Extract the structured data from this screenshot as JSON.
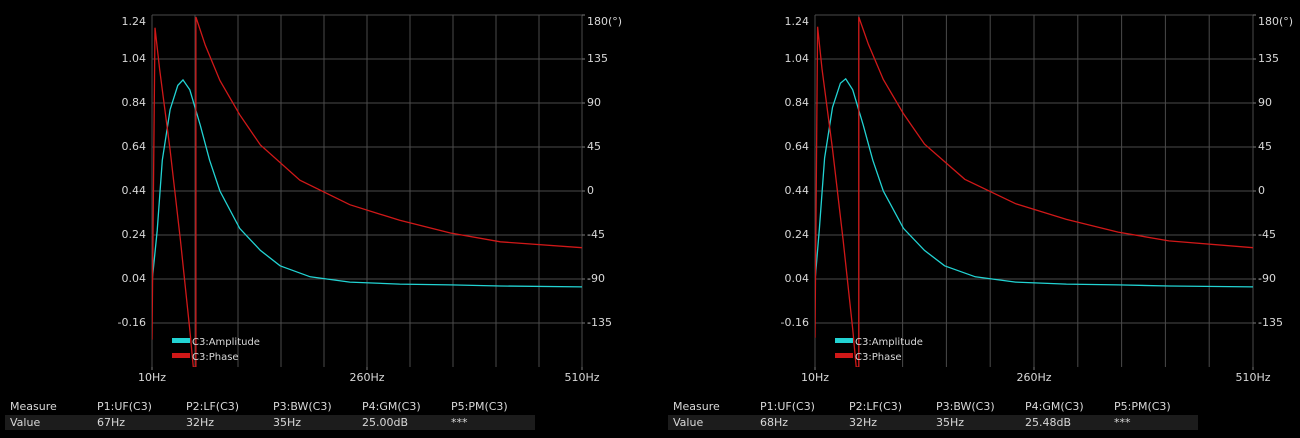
{
  "chart_data": [
    {
      "type": "line",
      "xlim": [
        10,
        510
      ],
      "xticks": [
        {
          "value": 10,
          "label": "10Hz"
        },
        {
          "value": 260,
          "label": "260Hz"
        },
        {
          "value": 510,
          "label": "510Hz"
        }
      ],
      "xgrid": [
        10,
        60,
        110,
        160,
        210,
        260,
        310,
        360,
        410,
        460,
        510
      ],
      "ylim": [
        -0.36,
        1.24
      ],
      "yticks": [
        -0.16,
        0.04,
        0.24,
        0.44,
        0.64,
        0.84,
        1.04,
        1.24
      ],
      "y2lim": [
        -180,
        180
      ],
      "y2ticks": [
        -135,
        -90,
        -45,
        0,
        45,
        90,
        135,
        {
          "value": 180,
          "label": "180(°)"
        }
      ],
      "grid": true,
      "legend": "lower left",
      "series": [
        {
          "name": "C3:Amplitude",
          "color": "#22d3d3",
          "x": [
            10,
            16,
            22,
            31,
            40,
            46,
            54,
            66,
            77,
            89,
            112,
            136,
            159,
            194,
            240,
            298,
            357,
            415,
            510
          ],
          "values": [
            0.026,
            0.26,
            0.58,
            0.81,
            0.92,
            0.945,
            0.9,
            0.74,
            0.58,
            0.44,
            0.27,
            0.17,
            0.1,
            0.05,
            0.026,
            0.017,
            0.013,
            0.008,
            0.004
          ]
        },
        {
          "name": "C3:Phase",
          "color": "#d01818",
          "axis": "y2",
          "x": [
            10,
            13.5,
            19,
            31,
            43,
            54,
            58,
            61,
            61,
            72,
            89,
            112,
            136,
            182,
            240,
            298,
            357,
            415,
            510
          ],
          "values": [
            -152,
            167,
            124,
            42,
            -50,
            -142,
            -180,
            -180,
            178,
            149,
            113,
            78,
            47,
            11,
            -14,
            -30,
            -43,
            -52,
            -58
          ]
        }
      ]
    },
    {
      "type": "line",
      "xlim": [
        10,
        510
      ],
      "xticks": [
        {
          "value": 10,
          "label": "10Hz"
        },
        {
          "value": 260,
          "label": "260Hz"
        },
        {
          "value": 510,
          "label": "510Hz"
        }
      ],
      "xgrid": [
        10,
        60,
        110,
        160,
        210,
        260,
        310,
        360,
        410,
        460,
        510
      ],
      "ylim": [
        -0.36,
        1.24
      ],
      "yticks": [
        -0.16,
        0.04,
        0.24,
        0.44,
        0.64,
        0.84,
        1.04,
        1.24
      ],
      "y2lim": [
        -180,
        180
      ],
      "y2ticks": [
        -135,
        -90,
        -45,
        0,
        45,
        90,
        135,
        {
          "value": 180,
          "label": "180(°)"
        }
      ],
      "grid": true,
      "legend": "lower left",
      "series": [
        {
          "name": "C3:Amplitude",
          "color": "#22d3d3",
          "x": [
            10,
            15,
            21,
            30,
            39,
            45,
            53,
            65,
            76,
            88,
            111,
            135,
            158,
            193,
            239,
            297,
            356,
            414,
            510
          ],
          "values": [
            0.03,
            0.27,
            0.59,
            0.82,
            0.93,
            0.95,
            0.9,
            0.74,
            0.58,
            0.44,
            0.27,
            0.17,
            0.1,
            0.05,
            0.026,
            0.017,
            0.013,
            0.008,
            0.004
          ]
        },
        {
          "name": "C3:Phase",
          "color": "#d01818",
          "axis": "y2",
          "x": [
            10,
            13,
            18,
            30,
            42,
            53,
            57,
            60,
            60,
            71,
            88,
            111,
            135,
            181,
            239,
            297,
            356,
            414,
            510
          ],
          "values": [
            -150,
            168,
            125,
            43,
            -49,
            -141,
            -180,
            -180,
            178,
            150,
            114,
            79,
            48,
            12,
            -13,
            -29,
            -42,
            -51,
            -58
          ]
        }
      ]
    }
  ],
  "measurements": [
    {
      "headers": [
        "Measure",
        "P1:UF(C3)",
        "P2:LF(C3)",
        "P3:BW(C3)",
        "P4:GM(C3)",
        "P5:PM(C3)"
      ],
      "values": [
        "Value",
        "67Hz",
        "32Hz",
        "35Hz",
        "25.00dB",
        "***"
      ]
    },
    {
      "headers": [
        "Measure",
        "P1:UF(C3)",
        "P2:LF(C3)",
        "P3:BW(C3)",
        "P4:GM(C3)",
        "P5:PM(C3)"
      ],
      "values": [
        "Value",
        "68Hz",
        "32Hz",
        "35Hz",
        "25.48dB",
        "***"
      ]
    }
  ]
}
